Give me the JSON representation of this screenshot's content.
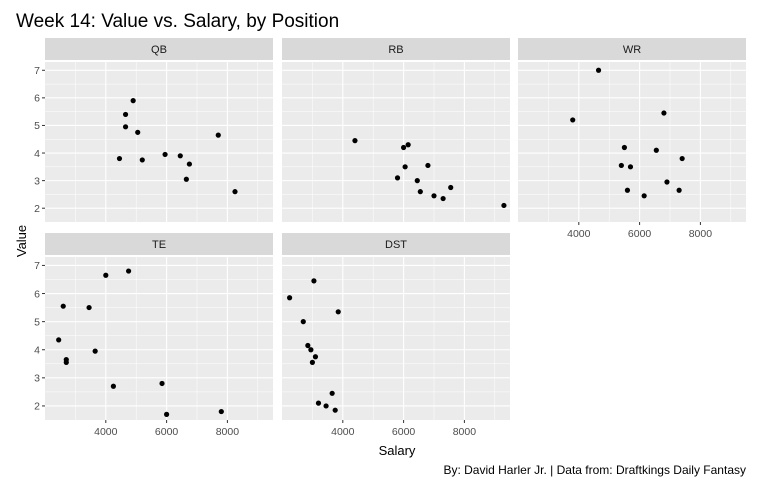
{
  "chart_data": {
    "type": "scatter",
    "title": "Week 14: Value vs. Salary, by Position",
    "xlabel": "Salary",
    "ylabel": "Value",
    "caption": "By: David Harler Jr. | Data from: Draftkings Daily Fantasy",
    "xlim": [
      2000,
      9500
    ],
    "ylim": [
      1.5,
      7.3
    ],
    "x_ticks": [
      4000,
      6000,
      8000
    ],
    "y_ticks": [
      2,
      3,
      4,
      5,
      6,
      7
    ],
    "grid": true,
    "legend": "none",
    "colors": {
      "panel": "#ebebeb",
      "strip": "#d9d9d9",
      "grid": "#ffffff",
      "point": "#000000"
    },
    "facets": [
      {
        "name": "QB",
        "points": [
          [
            4450,
            3.8
          ],
          [
            4650,
            5.4
          ],
          [
            4650,
            4.95
          ],
          [
            4900,
            5.9
          ],
          [
            5050,
            4.75
          ],
          [
            5200,
            3.75
          ],
          [
            5950,
            3.95
          ],
          [
            6450,
            3.9
          ],
          [
            6650,
            3.05
          ],
          [
            6750,
            3.6
          ],
          [
            7700,
            4.65
          ],
          [
            8250,
            2.6
          ]
        ]
      },
      {
        "name": "RB",
        "points": [
          [
            4400,
            4.45
          ],
          [
            5800,
            3.1
          ],
          [
            6000,
            4.2
          ],
          [
            6050,
            3.5
          ],
          [
            6150,
            4.3
          ],
          [
            6450,
            3.0
          ],
          [
            6550,
            2.6
          ],
          [
            6800,
            3.55
          ],
          [
            7000,
            2.45
          ],
          [
            7300,
            2.35
          ],
          [
            7550,
            2.75
          ],
          [
            9300,
            2.1
          ]
        ]
      },
      {
        "name": "WR",
        "points": [
          [
            3800,
            5.2
          ],
          [
            4650,
            7.0
          ],
          [
            5400,
            3.55
          ],
          [
            5500,
            4.2
          ],
          [
            5600,
            2.65
          ],
          [
            5700,
            3.5
          ],
          [
            6150,
            2.45
          ],
          [
            6550,
            4.1
          ],
          [
            6800,
            5.45
          ],
          [
            6900,
            2.95
          ],
          [
            7300,
            2.65
          ],
          [
            7400,
            3.8
          ]
        ]
      },
      {
        "name": "TE",
        "points": [
          [
            2450,
            4.35
          ],
          [
            2600,
            5.55
          ],
          [
            2700,
            3.65
          ],
          [
            2700,
            3.55
          ],
          [
            3450,
            5.5
          ],
          [
            3650,
            3.95
          ],
          [
            4000,
            6.65
          ],
          [
            4250,
            2.7
          ],
          [
            4750,
            6.8
          ],
          [
            5850,
            2.8
          ],
          [
            6000,
            1.7
          ],
          [
            7800,
            1.8
          ]
        ]
      },
      {
        "name": "DST",
        "points": [
          [
            2250,
            5.85
          ],
          [
            2700,
            5.0
          ],
          [
            2850,
            4.15
          ],
          [
            2950,
            4.0
          ],
          [
            3000,
            3.55
          ],
          [
            3050,
            6.45
          ],
          [
            3100,
            3.75
          ],
          [
            3200,
            2.1
          ],
          [
            3450,
            2.0
          ],
          [
            3650,
            2.45
          ],
          [
            3750,
            1.85
          ],
          [
            3850,
            5.35
          ]
        ]
      }
    ]
  }
}
